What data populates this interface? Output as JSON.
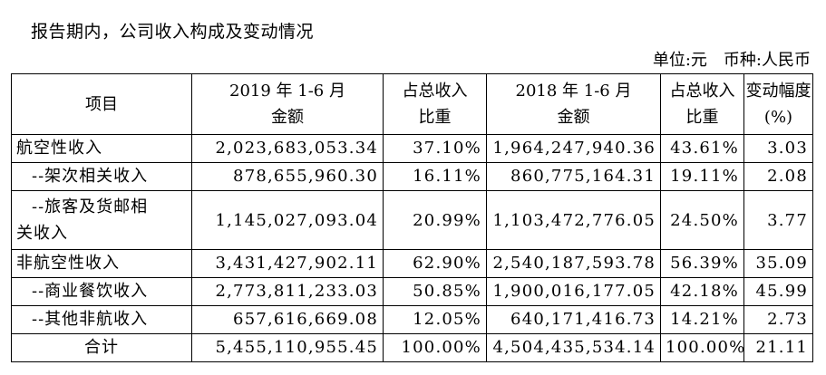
{
  "title": "报告期内，公司收入构成及变动情况",
  "unit_label": "单位:元",
  "currency_label": "币种:人民币",
  "headers": [
    [
      "项目"
    ],
    [
      "2019 年 1-6 月",
      "金额"
    ],
    [
      "占总收入",
      "比重"
    ],
    [
      "2018 年 1-6 月",
      "金额"
    ],
    [
      "占总收入",
      "比重"
    ],
    [
      "变动幅度",
      "(%)"
    ]
  ],
  "rows": [
    {
      "name": "航空性收入",
      "amount_2019": "2,023,683,053.34",
      "share_2019": "37.10%",
      "amount_2018": "1,964,247,940.36",
      "share_2018": "43.61%",
      "change": "3.03"
    },
    {
      "name": "--架次相关收入",
      "amount_2019": "878,655,960.30",
      "share_2019": "16.11%",
      "amount_2018": "860,775,164.31",
      "share_2018": "19.11%",
      "change": "2.08"
    },
    {
      "name_lines": [
        "--旅客及货邮相",
        "关收入"
      ],
      "amount_2019": "1,145,027,093.04",
      "share_2019": "20.99%",
      "amount_2018": "1,103,472,776.05",
      "share_2018": "24.50%",
      "change": "3.77"
    },
    {
      "name": "非航空性收入",
      "amount_2019": "3,431,427,902.11",
      "share_2019": "62.90%",
      "amount_2018": "2,540,187,593.78",
      "share_2018": "56.39%",
      "change": "35.09"
    },
    {
      "name": "--商业餐饮收入",
      "amount_2019": "2,773,811,233.03",
      "share_2019": "50.85%",
      "amount_2018": "1,900,016,177.05",
      "share_2018": "42.18%",
      "change": "45.99"
    },
    {
      "name": "--其他非航收入",
      "amount_2019": "657,616,669.08",
      "share_2019": "12.05%",
      "amount_2018": "640,171,416.73",
      "share_2018": "14.21%",
      "change": "2.73"
    },
    {
      "name": "合计",
      "amount_2019": "5,455,110,955.45",
      "share_2019": "100.00%",
      "amount_2018": "4,504,435,534.14",
      "share_2018": "100.00%",
      "change": "21.11"
    }
  ]
}
